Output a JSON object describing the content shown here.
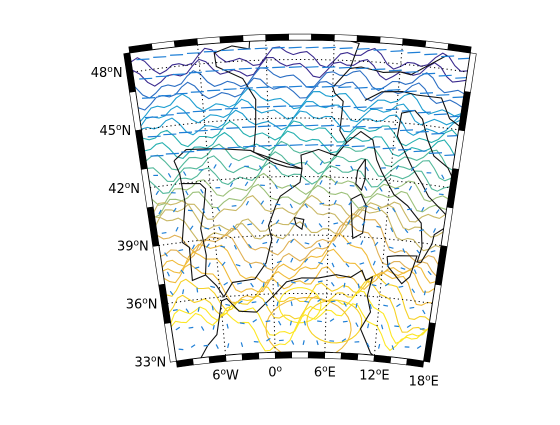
{
  "figure": {
    "latitude_labels": [
      {
        "deg": "48",
        "suffix": "N",
        "lat": 48
      },
      {
        "deg": "45",
        "suffix": "N",
        "lat": 45
      },
      {
        "deg": "42",
        "suffix": "N",
        "lat": 42
      },
      {
        "deg": "39",
        "suffix": "N",
        "lat": 39
      },
      {
        "deg": "36",
        "suffix": "N",
        "lat": 36
      },
      {
        "deg": "33",
        "suffix": "N",
        "lat": 33
      }
    ],
    "longitude_labels": [
      {
        "deg": "6",
        "suffix": "W",
        "lon": -6
      },
      {
        "deg": "0",
        "suffix": "",
        "lon": 0
      },
      {
        "deg": "6",
        "suffix": "E",
        "lon": 6
      },
      {
        "deg": "12",
        "suffix": "E",
        "lon": 12
      },
      {
        "deg": "18",
        "suffix": "E",
        "lon": 18
      }
    ],
    "extent": {
      "lon_min": -12,
      "lon_max": 18,
      "lat_min": 33,
      "lat_max": 49
    },
    "graticule": {
      "lons": [
        -6,
        0,
        6,
        12
      ],
      "lats": [
        36,
        39,
        42,
        45,
        48
      ],
      "style": "dotted"
    },
    "frame_style": "alternating black-white border",
    "contour_colormap": [
      "#3b2b8f",
      "#2c6fc4",
      "#1f9fd1",
      "#26b0b0",
      "#52b89a",
      "#9cc17a",
      "#c9b866",
      "#e0b155",
      "#f0bb3a",
      "#f6d126",
      "#fde725"
    ],
    "wind_vector_color": "#1f7fd6",
    "coastline_color": "#111111"
  }
}
